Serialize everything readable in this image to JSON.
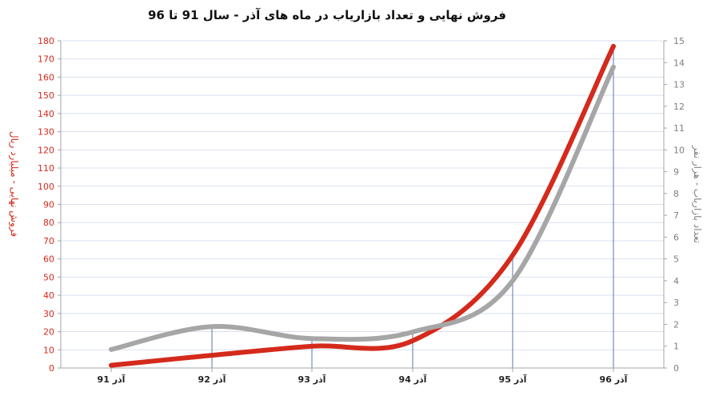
{
  "chart_data": {
    "type": "line",
    "title": "فروش نهایی و تعداد بازاریاب در ماه های آذر - سال 91 تا 96",
    "categories": [
      "آذر 91",
      "آذر 92",
      "آذر 93",
      "آذر 94",
      "آذر 95",
      "آذر 96"
    ],
    "ylabel": "فروش نهایی - میلیارد ریال",
    "y2label": "تعداد بازاریاب - هزار نفر",
    "ylim": [
      0,
      180
    ],
    "y2lim": [
      0,
      15
    ],
    "yticks": [
      "0",
      "10",
      "20",
      "30",
      "40",
      "50",
      "60",
      "70",
      "80",
      "90",
      "100",
      "110",
      "120",
      "130",
      "140",
      "150",
      "160",
      "170",
      "180"
    ],
    "y2ticks": [
      "0",
      "1",
      "2",
      "3",
      "4",
      "5",
      "6",
      "7",
      "8",
      "9",
      "10",
      "11",
      "12",
      "13",
      "14",
      "15"
    ],
    "grid": true,
    "series": [
      {
        "axis": "left",
        "color": "#d42a1c",
        "values": [
          1.5,
          7,
          12,
          15,
          62,
          177
        ]
      },
      {
        "axis": "right",
        "color": "#a6a6a6",
        "values": [
          0.85,
          1.9,
          1.35,
          1.65,
          4.0,
          13.8
        ]
      }
    ]
  }
}
